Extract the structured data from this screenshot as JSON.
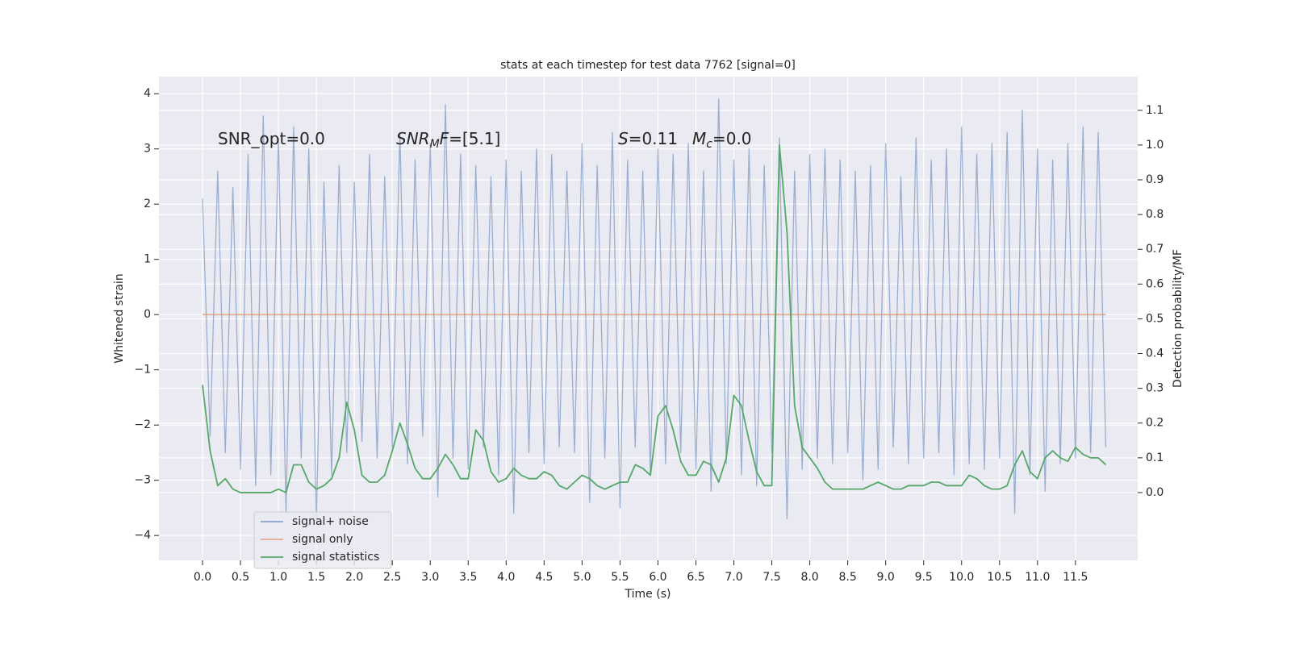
{
  "chart_data": {
    "type": "line",
    "title": "stats at each timestep for test data 7762 [signal=0]",
    "xlabel": "Time (s)",
    "ylabel": "Whitened strain",
    "y2label": "Detection probability/MF",
    "xlim": [
      -0.574,
      12.32
    ],
    "ylim": [
      -4.45,
      4.31
    ],
    "y2lim": [
      -0.195,
      1.197
    ],
    "xticks": [
      {
        "value": 0,
        "label": "0.0"
      },
      {
        "value": 0.5,
        "label": "0.5"
      },
      {
        "value": 1,
        "label": "1.0"
      },
      {
        "value": 1.5,
        "label": "1.5"
      },
      {
        "value": 2,
        "label": "2.0"
      },
      {
        "value": 2.5,
        "label": "2.5"
      },
      {
        "value": 3,
        "label": "3.0"
      },
      {
        "value": 3.5,
        "label": "3.5"
      },
      {
        "value": 4,
        "label": "4.0"
      },
      {
        "value": 4.5,
        "label": "4.5"
      },
      {
        "value": 5,
        "label": "5.0"
      },
      {
        "value": 5.5,
        "label": "5.5"
      },
      {
        "value": 6,
        "label": "6.0"
      },
      {
        "value": 6.5,
        "label": "6.5"
      },
      {
        "value": 7,
        "label": "7.0"
      },
      {
        "value": 7.5,
        "label": "7.5"
      },
      {
        "value": 8,
        "label": "8.0"
      },
      {
        "value": 8.5,
        "label": "8.5"
      },
      {
        "value": 9,
        "label": "9.0"
      },
      {
        "value": 9.5,
        "label": "9.5"
      },
      {
        "value": 10,
        "label": "10.0"
      },
      {
        "value": 10.5,
        "label": "10.5"
      },
      {
        "value": 11,
        "label": "11.0"
      },
      {
        "value": 11.5,
        "label": "11.5"
      }
    ],
    "yticks": [
      {
        "value": -4,
        "label": "−4"
      },
      {
        "value": -3,
        "label": "−3"
      },
      {
        "value": -2,
        "label": "−2"
      },
      {
        "value": -1,
        "label": "−1"
      },
      0,
      1,
      2,
      3,
      4
    ],
    "y2ticks": [
      {
        "value": 0,
        "label": "0.0"
      },
      {
        "value": 0.1,
        "label": "0.1"
      },
      {
        "value": 0.2,
        "label": "0.2"
      },
      {
        "value": 0.3,
        "label": "0.3"
      },
      {
        "value": 0.4,
        "label": "0.4"
      },
      {
        "value": 0.5,
        "label": "0.5"
      },
      {
        "value": 0.6,
        "label": "0.6"
      },
      {
        "value": 0.7,
        "label": "0.7"
      },
      {
        "value": 0.8,
        "label": "0.8"
      },
      {
        "value": 0.9,
        "label": "0.9"
      },
      {
        "value": 1,
        "label": "1.0"
      },
      {
        "value": 1.1,
        "label": "1.1"
      }
    ],
    "grid": true,
    "legend": "lower left",
    "x": [
      0,
      0.1,
      0.2,
      0.3,
      0.4,
      0.5,
      0.6,
      0.7,
      0.8,
      0.9,
      1,
      1.1,
      1.2,
      1.3,
      1.4,
      1.5,
      1.6,
      1.7,
      1.8,
      1.9,
      2,
      2.1,
      2.2,
      2.3,
      2.4,
      2.5,
      2.6,
      2.7,
      2.8,
      2.9,
      3,
      3.1,
      3.2,
      3.3,
      3.4,
      3.5,
      3.6,
      3.7,
      3.8,
      3.9,
      4,
      4.1,
      4.2,
      4.3,
      4.4,
      4.5,
      4.6,
      4.7,
      4.8,
      4.9,
      5,
      5.1,
      5.2,
      5.3,
      5.4,
      5.5,
      5.6,
      5.7,
      5.8,
      5.9,
      6,
      6.1,
      6.2,
      6.3,
      6.4,
      6.5,
      6.6,
      6.7,
      6.8,
      6.9,
      7,
      7.1,
      7.2,
      7.3,
      7.4,
      7.5,
      7.6,
      7.7,
      7.8,
      7.9,
      8,
      8.1,
      8.2,
      8.3,
      8.4,
      8.5,
      8.6,
      8.7,
      8.8,
      8.9,
      9,
      9.1,
      9.2,
      9.3,
      9.4,
      9.5,
      9.6,
      9.7,
      9.8,
      9.9,
      10,
      10.1,
      10.2,
      10.3,
      10.4,
      10.5,
      10.6,
      10.7,
      10.8,
      10.9,
      11,
      11.1,
      11.2,
      11.3,
      11.4,
      11.5,
      11.6,
      11.7,
      11.8,
      11.9
    ],
    "series": [
      {
        "name": "signal+ noise",
        "color": "#4c72b0",
        "values": [
          2.1,
          -2.2,
          2.6,
          -2.5,
          2.3,
          -2.8,
          2.9,
          -3.1,
          3.6,
          -2.9,
          3.2,
          -3.6,
          3.4,
          -2.6,
          3.0,
          -3.7,
          2.4,
          -2.9,
          2.7,
          -2.5,
          2.4,
          -2.3,
          2.9,
          -2.6,
          2.5,
          -2.4,
          3.3,
          -2.7,
          2.8,
          -2.2,
          3.1,
          -3.3,
          3.8,
          -2.6,
          2.9,
          -2.8,
          2.7,
          -2.4,
          2.5,
          -2.9,
          2.8,
          -3.6,
          2.6,
          -2.5,
          3.0,
          -2.7,
          2.9,
          -2.4,
          2.6,
          -2.5,
          3.1,
          -3.4,
          2.7,
          -2.6,
          3.3,
          -3.5,
          2.8,
          -2.4,
          2.6,
          -2.9,
          3.0,
          -2.7,
          2.9,
          -2.5,
          3.1,
          -2.8,
          2.6,
          -3.2,
          3.9,
          -2.7,
          2.8,
          -2.9,
          3.0,
          -3.1,
          2.7,
          -2.5,
          3.2,
          -3.7,
          2.6,
          -2.8,
          2.9,
          -2.6,
          3.0,
          -2.7,
          2.8,
          -2.5,
          2.6,
          -3.0,
          2.7,
          -2.8,
          3.1,
          -2.4,
          2.5,
          -2.7,
          3.2,
          -2.6,
          2.8,
          -2.5,
          3.0,
          -2.9,
          3.4,
          -2.7,
          2.9,
          -2.8,
          3.1,
          -2.6,
          3.3,
          -3.6,
          3.7,
          -2.9,
          3.0,
          -3.2,
          2.8,
          -2.7,
          3.1,
          -2.6,
          3.4,
          -2.5,
          3.3,
          -2.4
        ]
      },
      {
        "name": "signal only",
        "color": "#dd8452",
        "values": [
          0,
          0,
          0,
          0,
          0,
          0,
          0,
          0,
          0,
          0,
          0,
          0,
          0,
          0,
          0,
          0,
          0,
          0,
          0,
          0,
          0,
          0,
          0,
          0,
          0,
          0,
          0,
          0,
          0,
          0,
          0,
          0,
          0,
          0,
          0,
          0,
          0,
          0,
          0,
          0,
          0,
          0,
          0,
          0,
          0,
          0,
          0,
          0,
          0,
          0,
          0,
          0,
          0,
          0,
          0,
          0,
          0,
          0,
          0,
          0,
          0,
          0,
          0,
          0,
          0,
          0,
          0,
          0,
          0,
          0,
          0,
          0,
          0,
          0,
          0,
          0,
          0,
          0,
          0,
          0,
          0,
          0,
          0,
          0,
          0,
          0,
          0,
          0,
          0,
          0,
          0,
          0,
          0,
          0,
          0,
          0,
          0,
          0,
          0,
          0,
          0,
          0,
          0,
          0,
          0,
          0,
          0,
          0,
          0,
          0,
          0,
          0,
          0,
          0,
          0,
          0,
          0,
          0,
          0,
          0
        ]
      },
      {
        "name": "signal statistics",
        "color": "#55a868",
        "axis": "y2",
        "values": [
          0.31,
          0.12,
          0.02,
          0.04,
          0.01,
          0.0,
          0.0,
          0.0,
          0.0,
          0.0,
          0.01,
          0.0,
          0.08,
          0.08,
          0.03,
          0.01,
          0.02,
          0.04,
          0.1,
          0.26,
          0.18,
          0.05,
          0.03,
          0.03,
          0.05,
          0.12,
          0.2,
          0.14,
          0.07,
          0.04,
          0.04,
          0.07,
          0.11,
          0.08,
          0.04,
          0.04,
          0.18,
          0.15,
          0.06,
          0.03,
          0.04,
          0.07,
          0.05,
          0.04,
          0.04,
          0.06,
          0.05,
          0.02,
          0.01,
          0.03,
          0.05,
          0.04,
          0.02,
          0.01,
          0.02,
          0.03,
          0.03,
          0.08,
          0.07,
          0.05,
          0.22,
          0.25,
          0.18,
          0.09,
          0.05,
          0.05,
          0.09,
          0.08,
          0.03,
          0.1,
          0.28,
          0.25,
          0.15,
          0.06,
          0.02,
          0.02,
          1.0,
          0.75,
          0.25,
          0.13,
          0.1,
          0.07,
          0.03,
          0.01,
          0.01,
          0.01,
          0.01,
          0.01,
          0.02,
          0.03,
          0.02,
          0.01,
          0.01,
          0.02,
          0.02,
          0.02,
          0.03,
          0.03,
          0.02,
          0.02,
          0.02,
          0.05,
          0.04,
          0.02,
          0.01,
          0.01,
          0.02,
          0.08,
          0.12,
          0.06,
          0.04,
          0.1,
          0.12,
          0.1,
          0.09,
          0.13,
          0.11,
          0.1,
          0.1,
          0.08
        ]
      }
    ],
    "annotations": [
      [
        {
          "text": "SNR_opt=0.0"
        }
      ],
      [
        {
          "text": "SNR",
          "italic": true
        },
        {
          "text": "M",
          "italic": true,
          "sub": true
        },
        {
          "text": "F",
          "italic": true
        },
        {
          "text": "=[5.1]"
        }
      ],
      [
        {
          "text": "S",
          "italic": true
        },
        {
          "text": "=0.11"
        }
      ],
      [
        {
          "text": "M",
          "italic": true
        },
        {
          "text": "c",
          "italic": true,
          "sub": true
        },
        {
          "text": "=0.0"
        }
      ]
    ]
  }
}
